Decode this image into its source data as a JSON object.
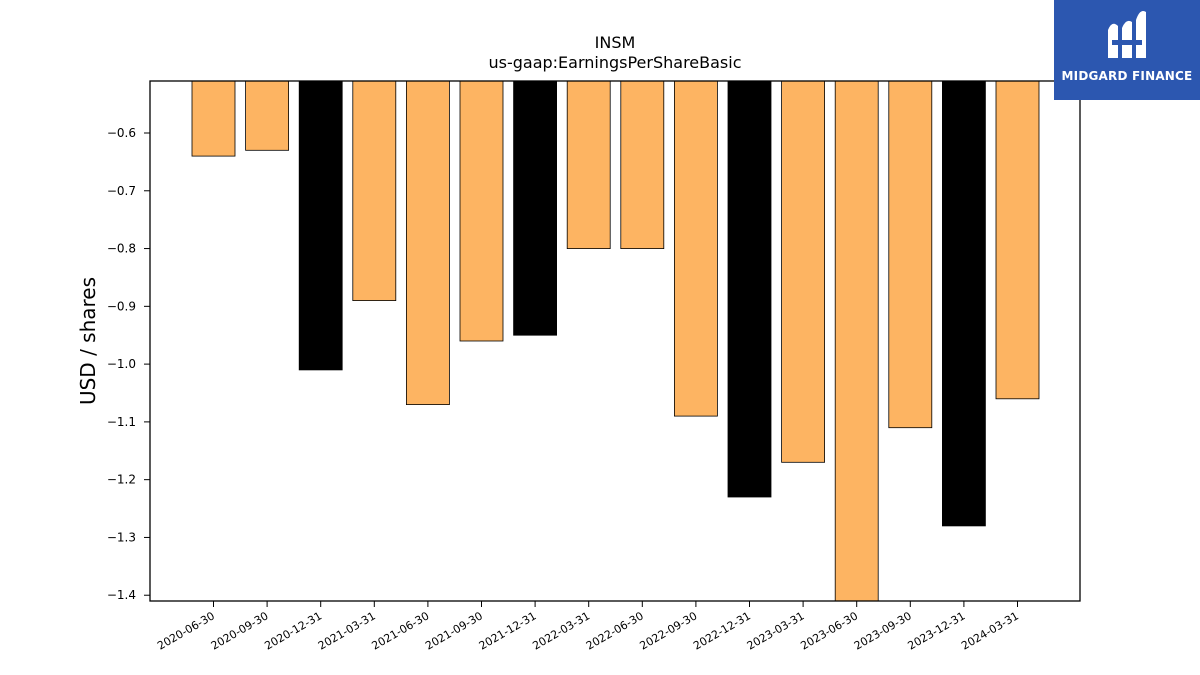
{
  "chart_data": {
    "type": "bar",
    "title": "INSM",
    "subtitle": "us-gaap:EarningsPerShareBasic",
    "xlabel": "",
    "ylabel": "USD / shares",
    "ylim": [
      -1.41,
      -0.51
    ],
    "yticks": [
      -0.6,
      -0.7,
      -0.8,
      -0.9,
      -1.0,
      -1.1,
      -1.2,
      -1.3,
      -1.4
    ],
    "categories": [
      "2020-06-30",
      "2020-09-30",
      "2020-12-31",
      "2021-03-31",
      "2021-06-30",
      "2021-09-30",
      "2021-12-31",
      "2022-03-31",
      "2022-06-30",
      "2022-09-30",
      "2022-12-31",
      "2023-03-31",
      "2023-06-30",
      "2023-09-30",
      "2023-12-31",
      "2024-03-31"
    ],
    "values": [
      -0.64,
      -0.63,
      -1.01,
      -0.89,
      -1.07,
      -0.96,
      -0.95,
      -0.8,
      -0.8,
      -1.09,
      -1.23,
      -1.17,
      -1.41,
      -1.11,
      -1.28,
      -1.06
    ],
    "highlight": [
      false,
      false,
      true,
      false,
      false,
      false,
      true,
      false,
      false,
      false,
      true,
      false,
      false,
      false,
      true,
      false
    ],
    "colors": {
      "quarter": "#fdb462",
      "year_end": "#000000",
      "edge": "#000000"
    },
    "grid": false,
    "legend": "none"
  },
  "logo": {
    "text": "MIDGARD FINANCE",
    "bg": "#2c57b0"
  }
}
